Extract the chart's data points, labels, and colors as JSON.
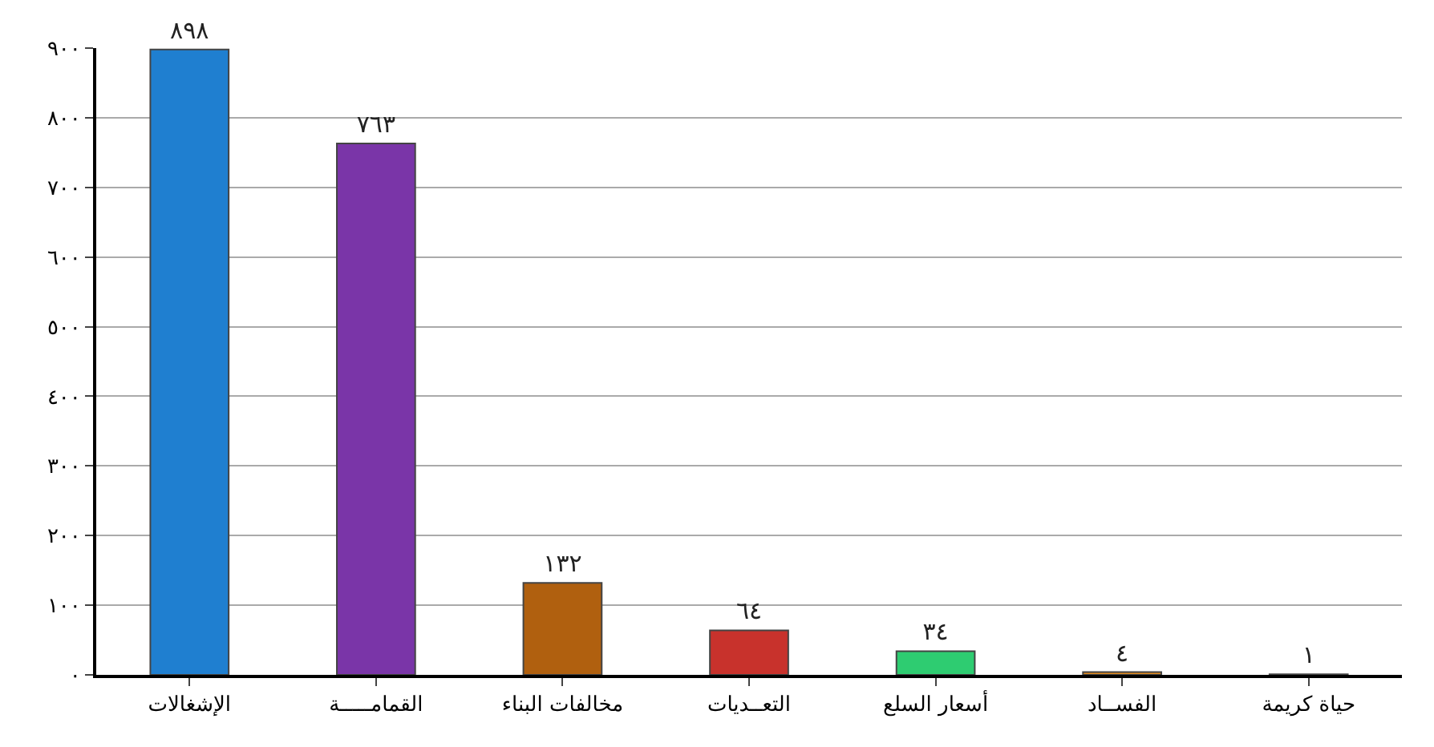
{
  "chart_data": {
    "type": "bar",
    "categories": [
      "الإشغالات",
      "القمامـــــة",
      "مخالفات البناء",
      "التعــديات",
      "أسعار السلع",
      "الفســاد",
      "حياة كريمة"
    ],
    "values": [
      898,
      763,
      132,
      64,
      34,
      4,
      1
    ],
    "value_labels": [
      "٨٩٨",
      "٧٦٣",
      "١٣٢",
      "٦٤",
      "٣٤",
      "٤",
      "١"
    ],
    "colors": [
      "#1f7fd0",
      "#7a35a8",
      "#b0600f",
      "#c8322c",
      "#2ecc71",
      "#e08a1e",
      "#3a8fd0"
    ],
    "ylim": [
      0,
      900
    ],
    "yticks": [
      {
        "value": 0,
        "label": "٠"
      },
      {
        "value": 100,
        "label": "١٠٠"
      },
      {
        "value": 200,
        "label": "٢٠٠"
      },
      {
        "value": 300,
        "label": "٣٠٠"
      },
      {
        "value": 400,
        "label": "٤٠٠"
      },
      {
        "value": 500,
        "label": "٥٠٠"
      },
      {
        "value": 600,
        "label": "٦٠٠"
      },
      {
        "value": 700,
        "label": "٧٠٠"
      },
      {
        "value": 800,
        "label": "٨٠٠"
      },
      {
        "value": 900,
        "label": "٩٠٠"
      }
    ],
    "grid": "y",
    "legend": false
  }
}
